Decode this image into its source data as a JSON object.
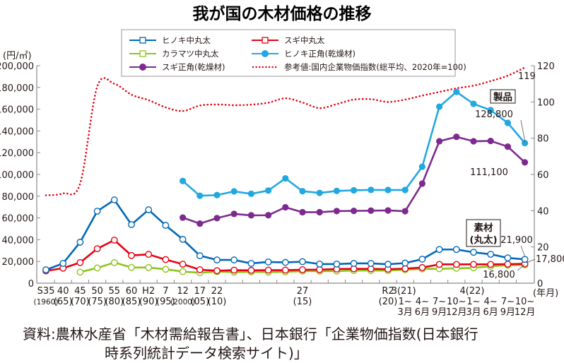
{
  "chart_data": {
    "type": "line",
    "title": "我が国の木材価格の推移",
    "ylabel_left": "(円/㎡)",
    "xlabel": "(年月)",
    "ylim_left": [
      0,
      200000
    ],
    "ylim_right": [
      0,
      120
    ],
    "yticks_left": [
      "0",
      "20,000",
      "40,000",
      "60,000",
      "80,000",
      "100,000",
      "120,000",
      "140,000",
      "160,000",
      "180,000",
      "200,000"
    ],
    "yticks_right": [
      "0",
      "20",
      "40",
      "60",
      "80",
      "100",
      "120"
    ],
    "x_labels": [
      {
        "i": 0,
        "top": "S35",
        "bottom": "(1960)"
      },
      {
        "i": 1,
        "top": "40",
        "bottom": "(65)"
      },
      {
        "i": 2,
        "top": "45",
        "bottom": "(70)"
      },
      {
        "i": 3,
        "top": "50",
        "bottom": "(75)"
      },
      {
        "i": 4,
        "top": "55",
        "bottom": "(80)"
      },
      {
        "i": 5,
        "top": "60",
        "bottom": "(85)"
      },
      {
        "i": 6,
        "top": "H2",
        "bottom": "(90)"
      },
      {
        "i": 7,
        "top": "7",
        "bottom": "(95)"
      },
      {
        "i": 8,
        "top": "12",
        "bottom": "(2000)"
      },
      {
        "i": 9,
        "top": "17",
        "bottom": "(05)"
      },
      {
        "i": 10,
        "top": "22",
        "bottom": "(10)"
      },
      {
        "i": 15,
        "top": "27",
        "bottom": "(15)"
      },
      {
        "i": 20,
        "top": "R2",
        "bottom": "(20)"
      }
    ],
    "quarter_labels": {
      "r3": "3(21)",
      "r4": "4(22)",
      "q": [
        {
          "i": 21,
          "a": "1~",
          "b": "3月"
        },
        {
          "i": 22,
          "a": "4~",
          "b": "6月"
        },
        {
          "i": 23,
          "a": "7~",
          "b": "9月"
        },
        {
          "i": 24,
          "a": "10~",
          "b": "12月"
        },
        {
          "i": 25,
          "a": "1~",
          "b": "3月"
        },
        {
          "i": 26,
          "a": "4~",
          "b": "6月"
        },
        {
          "i": 27,
          "a": "7~",
          "b": "9月"
        },
        {
          "i": 28,
          "a": "10~",
          "b": "12月"
        }
      ]
    },
    "x": [
      "S35",
      "40",
      "45",
      "50",
      "55",
      "60",
      "H2",
      "7",
      "12",
      "17",
      "22",
      "23",
      "24",
      "25",
      "26",
      "27",
      "28",
      "29",
      "30",
      "R1",
      "R2",
      "R3 1~3月",
      "R3 4~6月",
      "R3 7~9月",
      "R3 10~12月",
      "R4 1~3月",
      "R4 4~6月",
      "R4 7~9月",
      "R4 10~12月"
    ],
    "series": [
      {
        "name": "ヒノキ中丸太",
        "color": "#0068b7",
        "marker": "open-circle",
        "axis": "left",
        "values": [
          12300,
          18200,
          37700,
          66200,
          76600,
          53900,
          67500,
          53200,
          40300,
          25300,
          21400,
          21400,
          18200,
          19500,
          19100,
          19800,
          17600,
          17600,
          18200,
          18200,
          17400,
          18500,
          22100,
          31000,
          31000,
          28400,
          26600,
          23300,
          21900
        ]
      },
      {
        "name": "スギ中丸太",
        "color": "#e60012",
        "marker": "open-circle",
        "axis": "left",
        "values": [
          11300,
          13800,
          19000,
          31700,
          39600,
          25500,
          26500,
          21700,
          17500,
          12400,
          11500,
          12000,
          11800,
          12000,
          12000,
          12400,
          12500,
          13000,
          13200,
          13200,
          12900,
          13400,
          14400,
          17300,
          17300,
          17300,
          17300,
          17500,
          17800
        ]
      },
      {
        "name": "カラマツ中丸太",
        "color": "#8fc31f",
        "marker": "open-circle",
        "axis": "left",
        "values": [
          null,
          null,
          10200,
          14000,
          19000,
          14500,
          14400,
          12800,
          10700,
          9600,
          10600,
          10200,
          10400,
          10200,
          10400,
          11100,
          11100,
          11100,
          11600,
          11600,
          11600,
          12400,
          13100,
          13300,
          13700,
          14100,
          15600,
          16500,
          16800
        ]
      },
      {
        "name": "ヒノキ正角(乾燥材)",
        "color": "#22a8e1",
        "marker": "filled-circle",
        "axis": "left",
        "values": [
          null,
          null,
          null,
          null,
          null,
          null,
          null,
          null,
          94000,
          80400,
          81000,
          84400,
          82200,
          85200,
          96400,
          84600,
          83000,
          84800,
          85400,
          85800,
          85700,
          85700,
          107100,
          162300,
          175900,
          164900,
          159100,
          147400,
          128800
        ]
      },
      {
        "name": "スギ正角(乾燥材)",
        "color": "#7d2a8f",
        "marker": "filled-circle",
        "axis": "left",
        "values": [
          null,
          null,
          null,
          null,
          null,
          null,
          null,
          null,
          60300,
          54800,
          59800,
          63700,
          62400,
          62500,
          69800,
          65300,
          65300,
          66300,
          66500,
          66700,
          66900,
          66200,
          91600,
          130500,
          134600,
          130500,
          130800,
          125600,
          111100
        ]
      },
      {
        "name": "参考値:国内企業物価指数(総平均、2020年=100)",
        "color": "#e60012",
        "marker": "dotted",
        "axis": "right",
        "values": [
          48.5,
          49.5,
          55,
          108.5,
          110,
          104,
          101,
          97,
          95,
          98,
          98.6,
          98.2,
          98.5,
          99.6,
          102,
          99.7,
          96.6,
          98.8,
          101.3,
          101.5,
          100,
          101.3,
          103.5,
          105.5,
          107.5,
          109,
          111.5,
          114.5,
          119
        ]
      }
    ],
    "legend": {
      "entries": [
        "ヒノキ中丸太",
        "スギ中丸太",
        "カラマツ中丸太",
        "ヒノキ正角(乾燥材)",
        "スギ正角(乾燥材)",
        "参考値:国内企業物価指数(総平均、2020年=100)"
      ],
      "placement": "top"
    },
    "annotations": {
      "index_end": "119",
      "hinoki_sq_end": "128,800",
      "sugi_sq_end": "111,100",
      "hinoki_log_end": "21,900",
      "sugi_log_end": "17,800",
      "karamatsu_log_end": "16,800",
      "box_products": "製品",
      "box_logs_1": "素材",
      "box_logs_2": "(丸太)"
    }
  },
  "source": {
    "line1": "資料:農林水産省「木材需給報告書」、日本銀行「企業物価指数(日本銀行",
    "line2": "時系列統計データ検索サイト)」"
  }
}
